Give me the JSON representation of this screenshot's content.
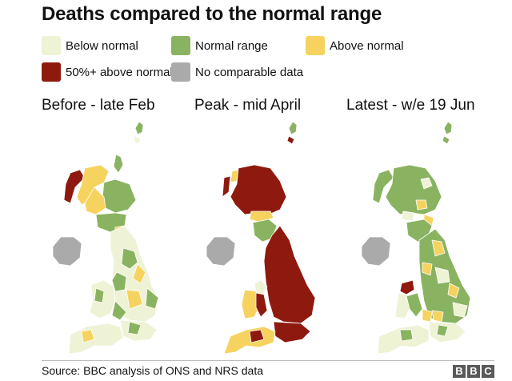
{
  "title": "Deaths compared to the normal range",
  "legend": [
    {
      "label": "Below normal",
      "color": "#eef3d6"
    },
    {
      "label": "Normal range",
      "color": "#8ab361"
    },
    {
      "label": "Above normal",
      "color": "#f6d35f"
    },
    {
      "label": "50%+ above normal",
      "color": "#8e1a0f"
    },
    {
      "label": "No comparable data",
      "color": "#aaaaaa"
    }
  ],
  "maps": [
    {
      "label": "Before - late Feb"
    },
    {
      "label": "Peak - mid April"
    },
    {
      "label": "Latest - w/e 19 Jun"
    }
  ],
  "source": "Source: BBC analysis of ONS and NRS data",
  "logo": [
    "B",
    "B",
    "C"
  ]
}
